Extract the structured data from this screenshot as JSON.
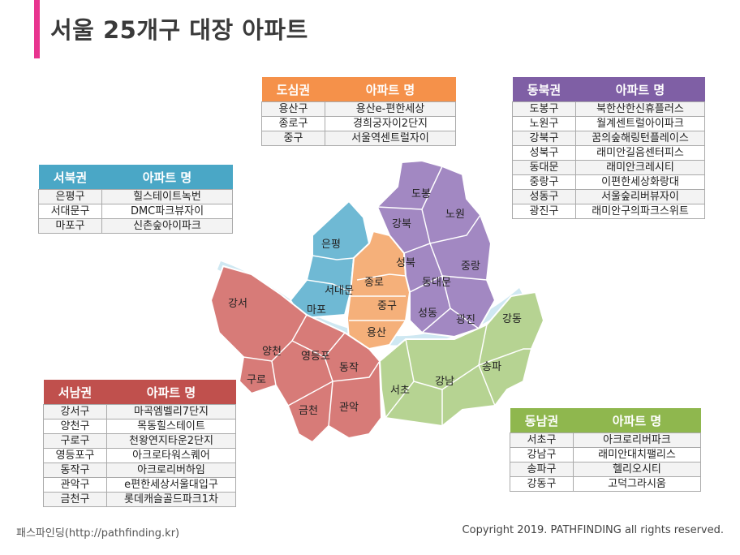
{
  "title": "서울 25개구 대장 아파트",
  "colors": {
    "accent": "#e8348f",
    "dosim": "#f5914a",
    "dongbuk": "#7f5fa5",
    "seobuk": "#4aa7c6",
    "seonam": "#c0504d",
    "dongnam": "#8fb74e",
    "river": "#cfe8f2"
  },
  "tables": {
    "dosim": {
      "region": "도심권",
      "header": "아파트 명",
      "rows": [
        {
          "gu": "용산구",
          "apt": "용산e-편한세상"
        },
        {
          "gu": "종로구",
          "apt": "경희궁자이2단지"
        },
        {
          "gu": "중구",
          "apt": "서울역센트럴자이"
        }
      ]
    },
    "dongbuk": {
      "region": "동북권",
      "header": "아파트 명",
      "rows": [
        {
          "gu": "도봉구",
          "apt": "북한산한신휴플러스"
        },
        {
          "gu": "노원구",
          "apt": "월계센트럴아이파크"
        },
        {
          "gu": "강북구",
          "apt": "꿈의숲해링턴플레이스"
        },
        {
          "gu": "성북구",
          "apt": "래미안길음센터피스"
        },
        {
          "gu": "동대문",
          "apt": "래미안크레시티"
        },
        {
          "gu": "중랑구",
          "apt": "이편한세상화랑대"
        },
        {
          "gu": "성동구",
          "apt": "서울숲리버뷰자이"
        },
        {
          "gu": "광진구",
          "apt": "래미안구의파크스위트"
        }
      ]
    },
    "seobuk": {
      "region": "서북권",
      "header": "아파트 명",
      "rows": [
        {
          "gu": "은평구",
          "apt": "힐스테이트녹번"
        },
        {
          "gu": "서대문구",
          "apt": "DMC파크뷰자이"
        },
        {
          "gu": "마포구",
          "apt": "신촌숲아이파크"
        }
      ]
    },
    "seonam": {
      "region": "서남권",
      "header": "아파트 명",
      "rows": [
        {
          "gu": "강서구",
          "apt": "마곡엠벨리7단지"
        },
        {
          "gu": "양천구",
          "apt": "목동힐스테이트"
        },
        {
          "gu": "구로구",
          "apt": "천왕연지타운2단지"
        },
        {
          "gu": "영등포구",
          "apt": "아크로타워스퀘어"
        },
        {
          "gu": "동작구",
          "apt": "아크로리버하임"
        },
        {
          "gu": "관악구",
          "apt": "e편한세상서울대입구"
        },
        {
          "gu": "금천구",
          "apt": "롯데캐슬골드파크1차"
        }
      ]
    },
    "dongnam": {
      "region": "동남권",
      "header": "아파트 명",
      "rows": [
        {
          "gu": "서초구",
          "apt": "아크로리버파크"
        },
        {
          "gu": "강남구",
          "apt": "래미안대치팰리스"
        },
        {
          "gu": "송파구",
          "apt": "헬리오시티"
        },
        {
          "gu": "강동구",
          "apt": "고덕그라시움"
        }
      ]
    }
  },
  "map_labels": {
    "dobong": "도봉",
    "nowon": "노원",
    "gangbuk": "강북",
    "seongbuk": "성북",
    "jungnang": "중랑",
    "dongdaemun": "동대문",
    "seongdong": "성동",
    "gwangjin": "광진",
    "eunpyeong": "은평",
    "seodaemun": "서대문",
    "mapo": "마포",
    "jongno": "종로",
    "junggu": "중구",
    "yongsan": "용산",
    "gangseo": "강서",
    "yangcheon": "양천",
    "guro": "구로",
    "yeongdeungpo": "영등포",
    "dongjak": "동작",
    "geumcheon": "금천",
    "gwanak": "관악",
    "seocho": "서초",
    "gangnam": "강남",
    "songpa": "송파",
    "gangdong": "강동"
  },
  "footer": {
    "left": "패스파인딩(http://pathfinding.kr)",
    "right": "Copyright 2019. PATHFINDING all rights reserved."
  }
}
